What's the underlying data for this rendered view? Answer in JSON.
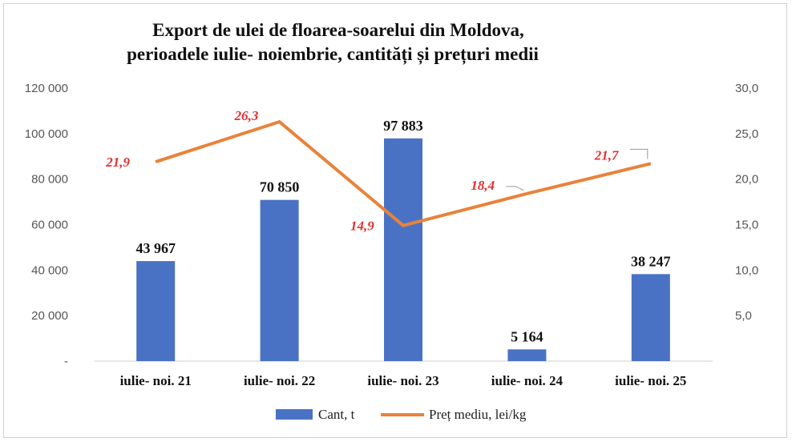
{
  "chart_data": {
    "type": "bar+line",
    "title_lines": [
      "Export de ulei de floarea-soarelui  din  Moldova,",
      "perioadele iulie- noiembrie, cantități și prețuri medii"
    ],
    "categories": [
      "iulie- noi. 21",
      "iulie- noi. 22",
      "iulie- noi. 23",
      "iulie- noi. 24",
      "iulie- noi. 25"
    ],
    "series": [
      {
        "name": "Cant, t",
        "type": "bar",
        "axis": "left",
        "color": "#4a72c4",
        "values": [
          43967,
          70850,
          97883,
          5164,
          38247
        ],
        "labels": [
          "43 967",
          "70 850",
          "97 883",
          "5 164",
          "38 247"
        ]
      },
      {
        "name": "Preț mediu, lei/kg",
        "type": "line",
        "axis": "right",
        "color": "#e8833a",
        "label_color": "#e03131",
        "values": [
          21.9,
          26.3,
          14.9,
          18.4,
          21.7
        ],
        "labels": [
          "21,9",
          "26,3",
          "14,9",
          "18,4",
          "21,7"
        ]
      }
    ],
    "y_left": {
      "range": [
        0,
        120000
      ],
      "ticks": [
        0,
        20000,
        40000,
        60000,
        80000,
        100000,
        120000
      ],
      "tick_labels": [
        "-",
        "20 000",
        "40 000",
        "60 000",
        "80 000",
        "100 000",
        "120 000"
      ]
    },
    "y_right": {
      "range": [
        0,
        30
      ],
      "ticks": [
        0,
        5,
        10,
        15,
        20,
        25,
        30
      ],
      "tick_labels": [
        "",
        "5,0",
        "10,0",
        "15,0",
        "20,0",
        "25,0",
        "30,0"
      ]
    },
    "grid": false,
    "legend": {
      "position": "bottom",
      "entries": [
        "Cant, t",
        "Preț mediu, lei/kg"
      ]
    }
  }
}
